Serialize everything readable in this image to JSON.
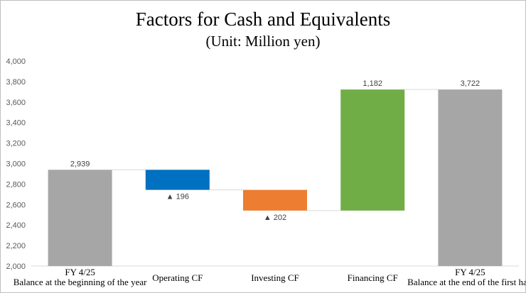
{
  "chart_data": {
    "type": "bar",
    "subtype": "waterfall",
    "title": "Factors for Cash and Equivalents",
    "subtitle": "(Unit: Million yen)",
    "xlabel": "",
    "ylabel": "",
    "ylim": [
      2000,
      4000
    ],
    "yticks": [
      "2,000",
      "2,200",
      "2,400",
      "2,600",
      "2,800",
      "3,000",
      "3,200",
      "3,400",
      "3,600",
      "3,800",
      "4,000"
    ],
    "grid": false,
    "legend": "none",
    "categories": [
      [
        "FY 4/25",
        "Balance at the beginning of the year"
      ],
      [
        "Operating CF"
      ],
      [
        "Investing CF"
      ],
      [
        "Financing CF"
      ],
      [
        "FY 4/25",
        "Balance at the end of the first half"
      ]
    ],
    "bars": [
      {
        "bottom": 2000,
        "top": 2939,
        "label": "2,939",
        "color": "#a6a6a6"
      },
      {
        "bottom": 2743,
        "top": 2939,
        "label": "▲ 196",
        "color": "#0070c0"
      },
      {
        "bottom": 2541,
        "top": 2743,
        "label": "▲ 202",
        "color": "#ed7d31"
      },
      {
        "bottom": 2541,
        "top": 3722,
        "label": "1,182",
        "color": "#70ad47"
      },
      {
        "bottom": 2000,
        "top": 3722,
        "label": "3,722",
        "color": "#a6a6a6"
      }
    ]
  }
}
